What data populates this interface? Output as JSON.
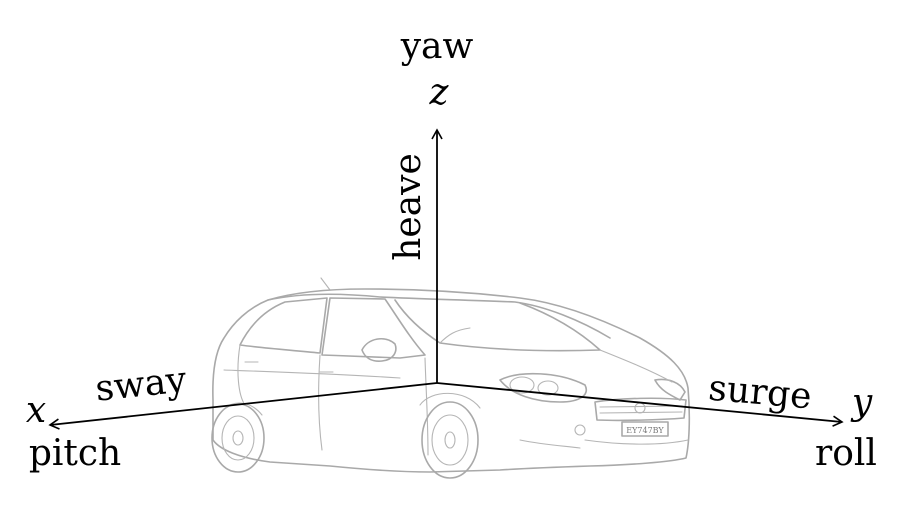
{
  "labels": {
    "z_axis": "z",
    "z_rotation": "yaw",
    "z_translation": "heave",
    "x_axis": "x",
    "x_rotation": "pitch",
    "x_translation": "sway",
    "y_axis": "y",
    "y_rotation": "roll",
    "y_translation": "surge"
  },
  "car": {
    "plate": "EY747BY"
  },
  "colors": {
    "axis": "#000000",
    "car_outline": "#a9a9a9"
  }
}
